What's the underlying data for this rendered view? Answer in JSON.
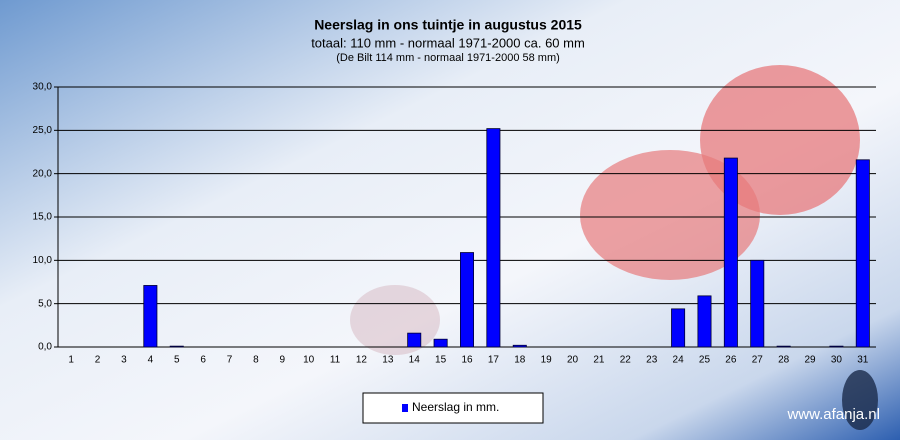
{
  "chart_data": {
    "type": "bar",
    "title": "Neerslag in ons tuintje in augustus 2015",
    "subtitle": "totaal: 110 mm  - normaal  1971-2000  ca. 60 mm",
    "note": "(De Bilt 114 mm - normaal 1971-2000 58 mm)",
    "annotation": "www.afanja.nl",
    "categories": [
      "1",
      "2",
      "3",
      "4",
      "5",
      "6",
      "7",
      "8",
      "9",
      "10",
      "11",
      "12",
      "13",
      "14",
      "15",
      "16",
      "17",
      "18",
      "19",
      "20",
      "21",
      "22",
      "23",
      "24",
      "25",
      "26",
      "27",
      "28",
      "29",
      "30",
      "31"
    ],
    "series": [
      {
        "name": "Neerslag in mm.",
        "color": "#0000ff",
        "values": [
          0,
          0,
          0,
          7.1,
          0.1,
          0,
          0,
          0,
          0,
          0,
          0,
          0,
          0,
          1.6,
          0.9,
          10.9,
          25.2,
          0.2,
          0,
          0,
          0,
          0,
          0,
          4.4,
          5.9,
          21.8,
          10,
          0.1,
          0,
          0.1,
          21.6
        ]
      }
    ],
    "ylim": [
      0,
      30
    ],
    "yticks": [
      {
        "value": 0,
        "label": "0,0"
      },
      {
        "value": 5,
        "label": "5,0"
      },
      {
        "value": 10,
        "label": "10,0"
      },
      {
        "value": 15,
        "label": "15,0"
      },
      {
        "value": 20,
        "label": "20,0"
      },
      {
        "value": 25,
        "label": "25,0"
      },
      {
        "value": 30,
        "label": "30,0"
      }
    ],
    "grid": true
  }
}
